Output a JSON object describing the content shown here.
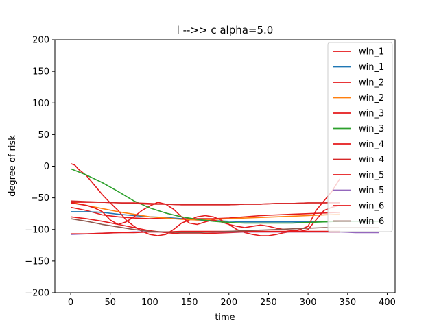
{
  "chart_data": {
    "type": "line",
    "title": "l -->> c  alpha=5.0",
    "xlabel": "time",
    "ylabel": "degree of risk",
    "xlim": [
      -20,
      410
    ],
    "ylim": [
      -200,
      200
    ],
    "xticks": [
      0,
      50,
      100,
      150,
      200,
      250,
      300,
      350,
      400
    ],
    "yticks": [
      -200,
      -150,
      -100,
      -50,
      0,
      50,
      100,
      150,
      200
    ],
    "grid": false,
    "legend_position": "top-right",
    "series": [
      {
        "name": "win_1",
        "color": "#e41a1c",
        "x": [
          0,
          20,
          40,
          60,
          80,
          100,
          120,
          140,
          160,
          180,
          200,
          220,
          240,
          260,
          280,
          300,
          320,
          340
        ],
        "y": [
          -65,
          -70,
          -77,
          -80,
          -82,
          -83,
          -82,
          -83,
          -83,
          -83,
          -82,
          -80,
          -78,
          -77,
          -76,
          -75,
          -74,
          -73
        ]
      },
      {
        "name": "win_1",
        "color": "#1f77b4",
        "x": [
          0,
          20,
          40,
          60,
          80,
          100,
          120,
          140,
          160,
          180,
          200,
          220,
          240,
          260,
          280,
          300,
          320,
          340,
          360,
          380,
          390
        ],
        "y": [
          -72,
          -72,
          -73,
          -76,
          -78,
          -80,
          -81,
          -83,
          -85,
          -86,
          -87,
          -88,
          -88,
          -88,
          -88,
          -88,
          -88,
          -87,
          -87,
          -87,
          -87
        ]
      },
      {
        "name": "win_2",
        "color": "#e41a1c",
        "x": [
          0,
          5,
          10,
          20,
          30,
          40,
          50,
          60,
          70,
          80,
          90,
          100,
          110,
          120,
          130,
          140,
          150,
          160,
          170,
          180,
          190,
          200,
          210,
          220,
          230,
          240,
          250,
          260,
          270,
          280,
          290,
          300,
          310,
          320,
          330,
          340
        ],
        "y": [
          4,
          2,
          -5,
          -15,
          -30,
          -45,
          -58,
          -70,
          -85,
          -95,
          -103,
          -108,
          -110,
          -108,
          -100,
          -90,
          -85,
          -80,
          -78,
          -80,
          -85,
          -92,
          -100,
          -105,
          -108,
          -110,
          -110,
          -108,
          -105,
          -103,
          -100,
          -95,
          -70,
          -55,
          -40,
          -20
        ]
      },
      {
        "name": "win_2",
        "color": "#ff7f0e",
        "x": [
          0,
          20,
          40,
          60,
          80,
          100,
          120,
          140,
          160,
          180,
          200,
          220,
          240,
          260,
          280,
          300,
          320,
          340
        ],
        "y": [
          -57,
          -62,
          -67,
          -72,
          -76,
          -80,
          -82,
          -84,
          -85,
          -84,
          -83,
          -82,
          -81,
          -80,
          -79,
          -78,
          -77,
          -76
        ]
      },
      {
        "name": "win_3",
        "color": "#e41a1c",
        "x": [
          0,
          10,
          20,
          30,
          40,
          50,
          60,
          70,
          80,
          90,
          100,
          110,
          120,
          130,
          140,
          150,
          160,
          170,
          180,
          190,
          200,
          210,
          220,
          230,
          240,
          250,
          260,
          270,
          280,
          290,
          300,
          310,
          320,
          330,
          340
        ],
        "y": [
          -58,
          -60,
          -62,
          -66,
          -72,
          -85,
          -92,
          -88,
          -80,
          -70,
          -63,
          -57,
          -60,
          -68,
          -80,
          -90,
          -92,
          -88,
          -85,
          -88,
          -92,
          -95,
          -97,
          -95,
          -93,
          -95,
          -98,
          -100,
          -102,
          -103,
          -100,
          -85,
          -70,
          -65,
          -62
        ]
      },
      {
        "name": "win_3",
        "color": "#2ca02c",
        "x": [
          0,
          20,
          40,
          60,
          80,
          100,
          120,
          140,
          160,
          180,
          200,
          220,
          240,
          260,
          280,
          300,
          320,
          340,
          360,
          380,
          390
        ],
        "y": [
          -4,
          -14,
          -26,
          -40,
          -55,
          -66,
          -74,
          -80,
          -84,
          -87,
          -89,
          -90,
          -90,
          -90,
          -90,
          -89,
          -88,
          -87,
          -87,
          -87,
          -87
        ]
      },
      {
        "name": "win_4",
        "color": "#e41a1c",
        "x": [
          0,
          20,
          40,
          60,
          80,
          100,
          120,
          140,
          160,
          180,
          200,
          220,
          240,
          260,
          280,
          300,
          320,
          340
        ],
        "y": [
          -57,
          -57,
          -57,
          -58,
          -58,
          -59,
          -60,
          -61,
          -61,
          -61,
          -61,
          -60,
          -60,
          -59,
          -59,
          -58,
          -58,
          -57
        ]
      },
      {
        "name": "win_4",
        "color": "#d62728",
        "x": [
          0,
          20,
          40,
          60,
          80,
          100,
          120,
          140,
          160,
          180,
          200,
          220,
          240,
          260,
          280,
          300,
          320,
          340
        ],
        "y": [
          -55,
          -56,
          -57,
          -58,
          -59,
          -60,
          -60,
          -61,
          -61,
          -61,
          -61,
          -60,
          -60,
          -59,
          -59,
          -58,
          -58,
          -58
        ]
      },
      {
        "name": "win_5",
        "color": "#e41a1c",
        "x": [
          0,
          20,
          40,
          60,
          80,
          100,
          120,
          140,
          160,
          180,
          200,
          220,
          240,
          260,
          280,
          300,
          320,
          340
        ],
        "y": [
          -80,
          -83,
          -87,
          -92,
          -97,
          -102,
          -105,
          -107,
          -107,
          -106,
          -105,
          -104,
          -104,
          -104,
          -104,
          -104,
          -104,
          -104
        ]
      },
      {
        "name": "win_5",
        "color": "#9467bd",
        "x": [
          0,
          20,
          40,
          60,
          80,
          100,
          120,
          140,
          160,
          180,
          200,
          220,
          240,
          260,
          280,
          300,
          320,
          340,
          360,
          380,
          390
        ],
        "y": [
          -108,
          -107,
          -106,
          -105,
          -104,
          -104,
          -104,
          -104,
          -104,
          -104,
          -104,
          -104,
          -104,
          -104,
          -104,
          -104,
          -104,
          -104,
          -105,
          -105,
          -105
        ]
      },
      {
        "name": "win_6",
        "color": "#e41a1c",
        "x": [
          0,
          20,
          40,
          60,
          80,
          100,
          120,
          140,
          160,
          180,
          200,
          220,
          240,
          260,
          280,
          300,
          320,
          340
        ],
        "y": [
          -107,
          -107,
          -106,
          -105,
          -105,
          -104,
          -104,
          -103,
          -103,
          -103,
          -103,
          -103,
          -103,
          -103,
          -103,
          -103,
          -103,
          -103
        ]
      },
      {
        "name": "win_6",
        "color": "#8c564b",
        "x": [
          0,
          20,
          40,
          60,
          80,
          100,
          120,
          140,
          160,
          180,
          200,
          220,
          240,
          260,
          280,
          300,
          320,
          340,
          360,
          380,
          390
        ],
        "y": [
          -83,
          -87,
          -92,
          -96,
          -100,
          -103,
          -104,
          -105,
          -105,
          -104,
          -103,
          -102,
          -101,
          -100,
          -99,
          -98,
          -97,
          -97,
          -97,
          -97,
          -97
        ]
      }
    ]
  }
}
